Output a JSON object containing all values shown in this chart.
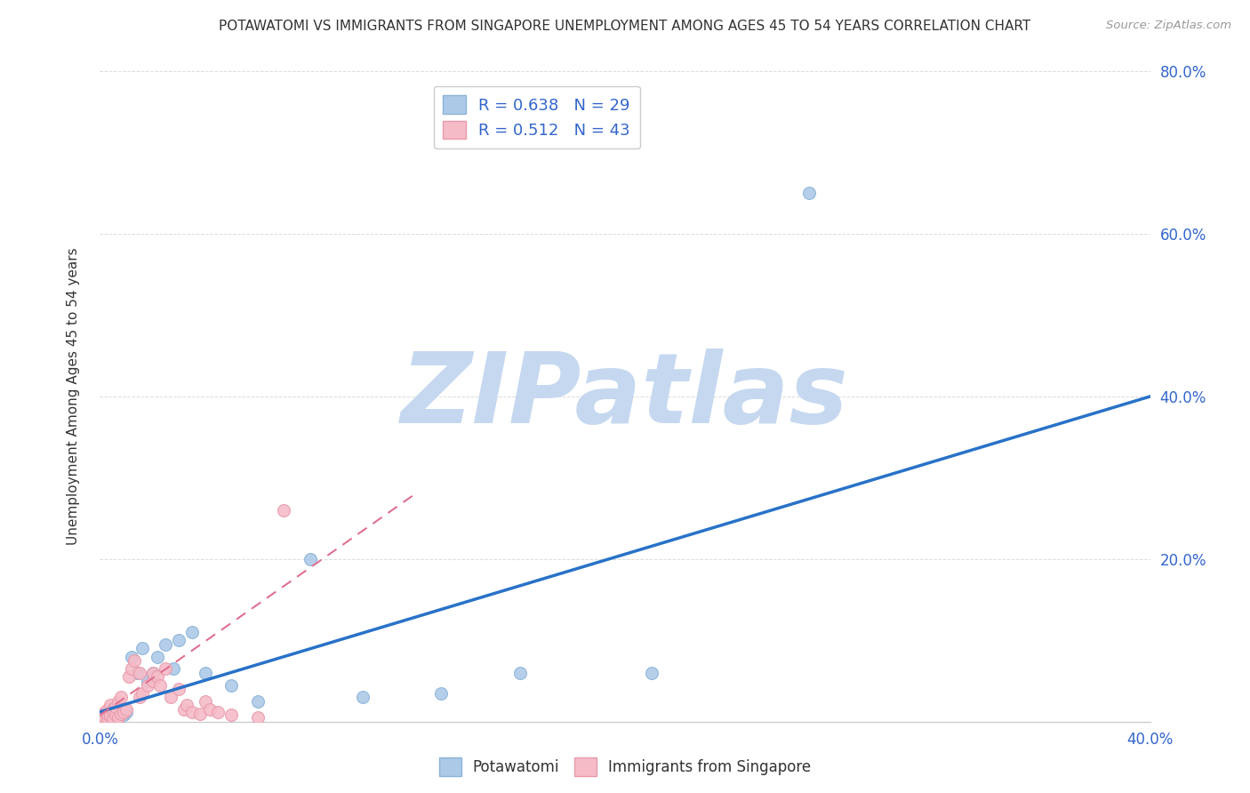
{
  "title": "POTAWATOMI VS IMMIGRANTS FROM SINGAPORE UNEMPLOYMENT AMONG AGES 45 TO 54 YEARS CORRELATION CHART",
  "source": "Source: ZipAtlas.com",
  "ylabel": "Unemployment Among Ages 45 to 54 years",
  "xlim": [
    0.0,
    0.4
  ],
  "ylim": [
    0.0,
    0.8
  ],
  "xticks": [
    0.0,
    0.05,
    0.1,
    0.15,
    0.2,
    0.25,
    0.3,
    0.35,
    0.4
  ],
  "yticks": [
    0.0,
    0.2,
    0.4,
    0.6,
    0.8
  ],
  "right_ytick_labels": [
    "",
    "20.0%",
    "40.0%",
    "60.0%",
    "80.0%"
  ],
  "blue_color": "#adc9e8",
  "pink_color": "#f5bcc8",
  "blue_edge_color": "#8ab4d8",
  "pink_edge_color": "#e899aa",
  "trend_blue_color": "#2872c8",
  "trend_pink_color": "#e07090",
  "grid_color": "#d8d8d8",
  "watermark_color": "#c5d8f0",
  "watermark_text": "ZIPatlas",
  "blue_scatter_x": [
    0.001,
    0.002,
    0.003,
    0.004,
    0.005,
    0.006,
    0.007,
    0.008,
    0.009,
    0.01,
    0.012,
    0.014,
    0.016,
    0.018,
    0.02,
    0.022,
    0.025,
    0.028,
    0.03,
    0.035,
    0.04,
    0.05,
    0.06,
    0.08,
    0.1,
    0.13,
    0.16,
    0.21,
    0.27
  ],
  "blue_scatter_y": [
    0.002,
    0.004,
    0.003,
    0.006,
    0.005,
    0.008,
    0.007,
    0.01,
    0.008,
    0.012,
    0.08,
    0.06,
    0.09,
    0.05,
    0.06,
    0.08,
    0.095,
    0.065,
    0.1,
    0.11,
    0.06,
    0.045,
    0.025,
    0.2,
    0.03,
    0.035,
    0.06,
    0.06,
    0.65
  ],
  "pink_scatter_x": [
    0.001,
    0.001,
    0.002,
    0.002,
    0.003,
    0.003,
    0.003,
    0.004,
    0.004,
    0.005,
    0.005,
    0.006,
    0.006,
    0.007,
    0.007,
    0.008,
    0.008,
    0.009,
    0.01,
    0.011,
    0.012,
    0.013,
    0.015,
    0.015,
    0.016,
    0.018,
    0.02,
    0.02,
    0.022,
    0.023,
    0.025,
    0.027,
    0.03,
    0.032,
    0.033,
    0.035,
    0.038,
    0.04,
    0.042,
    0.045,
    0.05,
    0.06,
    0.07
  ],
  "pink_scatter_y": [
    0.003,
    0.008,
    0.005,
    0.012,
    0.004,
    0.01,
    0.015,
    0.007,
    0.02,
    0.003,
    0.015,
    0.008,
    0.018,
    0.005,
    0.025,
    0.01,
    0.03,
    0.012,
    0.015,
    0.055,
    0.065,
    0.075,
    0.03,
    0.06,
    0.035,
    0.045,
    0.05,
    0.06,
    0.055,
    0.045,
    0.065,
    0.03,
    0.04,
    0.015,
    0.02,
    0.012,
    0.01,
    0.025,
    0.015,
    0.012,
    0.008,
    0.005,
    0.26
  ],
  "blue_trend_x": [
    0.0,
    0.4
  ],
  "blue_trend_y": [
    0.012,
    0.4
  ],
  "pink_trend_x": [
    0.0,
    0.12
  ],
  "pink_trend_y": [
    0.008,
    0.28
  ],
  "legend_blue_label": "R = 0.638   N = 29",
  "legend_pink_label": "R = 0.512   N = 43",
  "marker_size": 100,
  "bottom_legend_labels": [
    "Potawatomi",
    "Immigrants from Singapore"
  ]
}
